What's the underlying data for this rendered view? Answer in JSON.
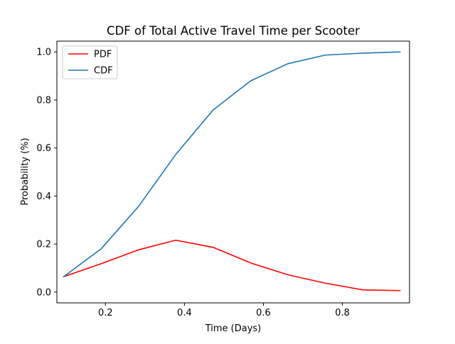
{
  "chart_data": {
    "type": "line",
    "title": "CDF of Total Active Travel Time per Scooter",
    "xlabel": "Time (Days)",
    "ylabel": "Probability (%)",
    "xlim": [
      0.077,
      0.97
    ],
    "ylim": [
      -0.045,
      1.045
    ],
    "xticks": [
      0.2,
      0.4,
      0.6,
      0.8
    ],
    "xtick_labels": [
      "0.2",
      "0.4",
      "0.6",
      "0.8"
    ],
    "yticks": [
      0.0,
      0.2,
      0.4,
      0.6,
      0.8,
      1.0
    ],
    "ytick_labels": [
      "0.0",
      "0.2",
      "0.4",
      "0.6",
      "0.8",
      "1.0"
    ],
    "x": [
      0.094,
      0.189,
      0.284,
      0.378,
      0.473,
      0.568,
      0.662,
      0.757,
      0.852,
      0.946
    ],
    "series": [
      {
        "name": "PDF",
        "color": "#ff0000",
        "values": [
          0.064,
          0.118,
          0.176,
          0.216,
          0.186,
          0.121,
          0.072,
          0.037,
          0.009,
          0.006
        ]
      },
      {
        "name": "CDF",
        "color": "#1f77b4",
        "values": [
          0.064,
          0.18,
          0.357,
          0.573,
          0.759,
          0.88,
          0.951,
          0.987,
          0.995,
          1.0
        ]
      }
    ],
    "grid": false,
    "legend": "upper-left"
  }
}
